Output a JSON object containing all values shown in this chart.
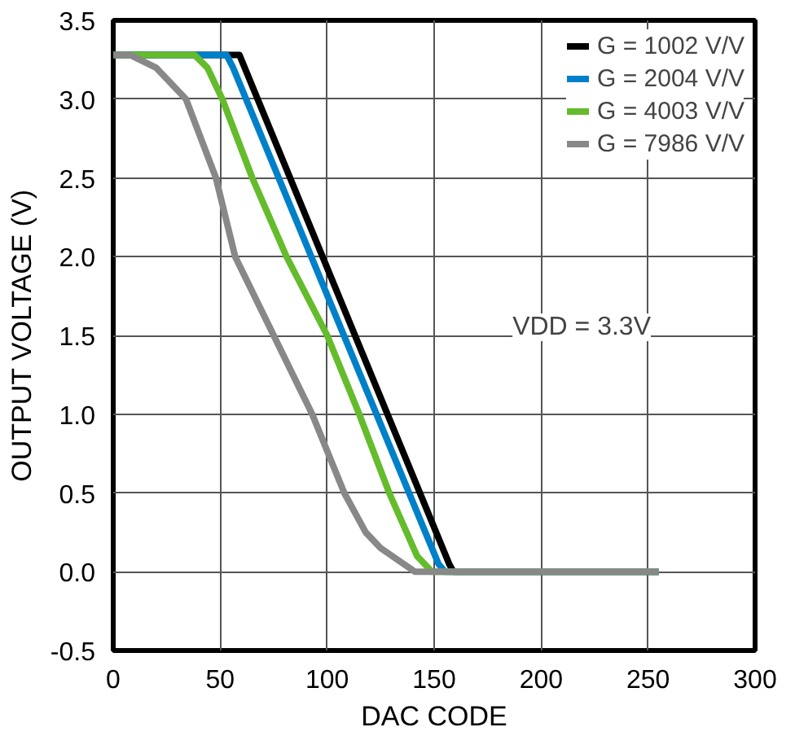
{
  "chart_data": {
    "type": "line",
    "xlabel": "DAC CODE",
    "ylabel": "OUTPUT VOLTAGE (V)",
    "xlim": [
      0,
      300
    ],
    "xticks": [
      0,
      50,
      100,
      150,
      200,
      250,
      300
    ],
    "ylim": [
      -0.5,
      3.5
    ],
    "yticks": [
      -0.5,
      {
        "value": 0,
        "label": "0.0"
      },
      0.5,
      {
        "value": 1,
        "label": "1.0"
      },
      1.5,
      {
        "value": 2,
        "label": "2.0"
      },
      2.5,
      {
        "value": 3,
        "label": "3.0"
      },
      3.5
    ],
    "grid": true,
    "legend": "top right",
    "annotations": [
      "VDD = 3.3V"
    ],
    "series": [
      {
        "name": "G = 1002 V/V",
        "color": "#000000",
        "x": [
          0,
          59,
          157,
          159,
          255
        ],
        "values": [
          3.28,
          3.28,
          0.05,
          0.0,
          0.0
        ]
      },
      {
        "name": "G = 2004 V/V",
        "color": "#0080c8",
        "x": [
          0,
          53,
          56,
          152,
          155,
          255
        ],
        "values": [
          3.28,
          3.28,
          3.2,
          0.05,
          0.0,
          0.0
        ]
      },
      {
        "name": "G = 4003 V/V",
        "color": "#64bc2c",
        "x": [
          0,
          38,
          44,
          51,
          65,
          81,
          100,
          115,
          129,
          142,
          149,
          255
        ],
        "values": [
          3.28,
          3.28,
          3.2,
          3.0,
          2.5,
          2.0,
          1.5,
          1.0,
          0.5,
          0.1,
          0.0,
          0.0
        ]
      },
      {
        "name": "G = 7986 V/V",
        "color": "#888888",
        "x": [
          0,
          8,
          20,
          34,
          48,
          57,
          75,
          93,
          108,
          118,
          125,
          141,
          255
        ],
        "values": [
          3.28,
          3.28,
          3.2,
          3.0,
          2.5,
          2.0,
          1.5,
          1.0,
          0.5,
          0.25,
          0.15,
          0.0,
          0.0
        ]
      }
    ]
  }
}
